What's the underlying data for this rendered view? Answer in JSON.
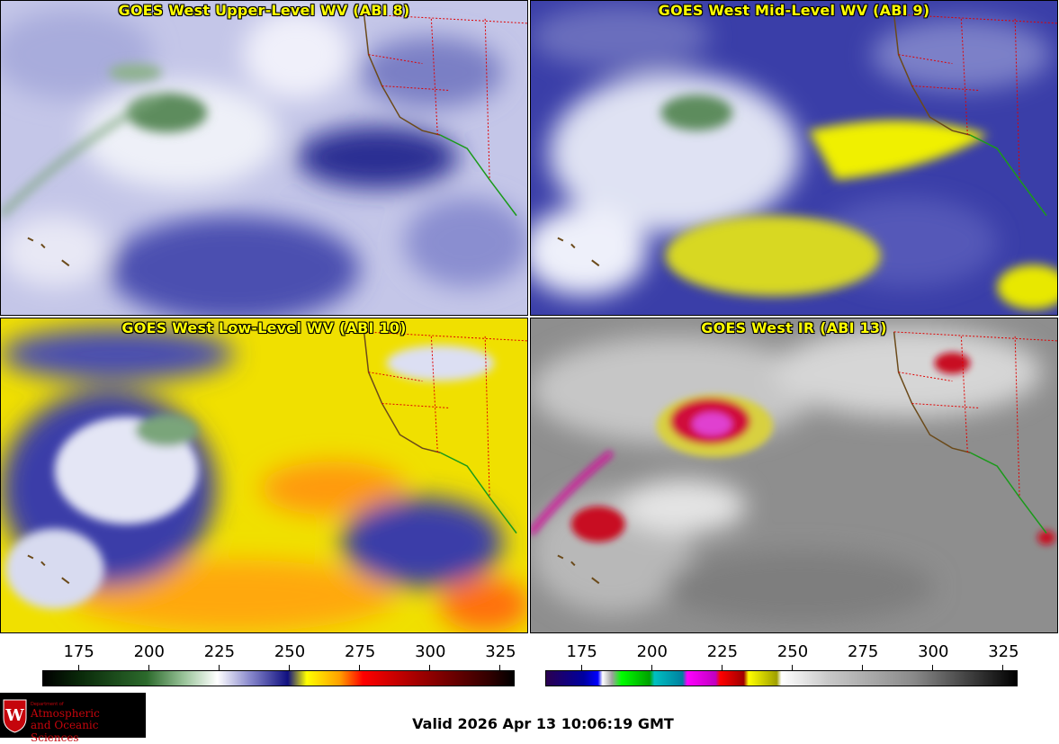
{
  "panels": [
    {
      "title": "GOES West Upper-Level WV (ABI 8)"
    },
    {
      "title": "GOES West Mid-Level WV (ABI 9)"
    },
    {
      "title": "GOES West Low-Level WV (ABI 10)"
    },
    {
      "title": "GOES West IR (ABI 13)"
    }
  ],
  "colorbars": {
    "wv": {
      "ticks": [
        "175",
        "200",
        "225",
        "250",
        "275",
        "300",
        "325"
      ],
      "tick_values": [
        175,
        200,
        225,
        250,
        275,
        300,
        325
      ],
      "range": [
        162,
        330
      ]
    },
    "ir": {
      "ticks": [
        "175",
        "200",
        "225",
        "250",
        "275",
        "300",
        "325"
      ],
      "tick_values": [
        175,
        200,
        225,
        250,
        275,
        300,
        325
      ],
      "range": [
        162,
        330
      ]
    }
  },
  "logo": {
    "line1": "Department of",
    "line2": "Atmospheric",
    "line3": "and Oceanic Sciences",
    "seal_letter": "W"
  },
  "valid_time": "Valid 2026 Apr 13 10:06:19 GMT",
  "colors": {
    "title": "#ffff00",
    "brand": "#c5050c"
  }
}
